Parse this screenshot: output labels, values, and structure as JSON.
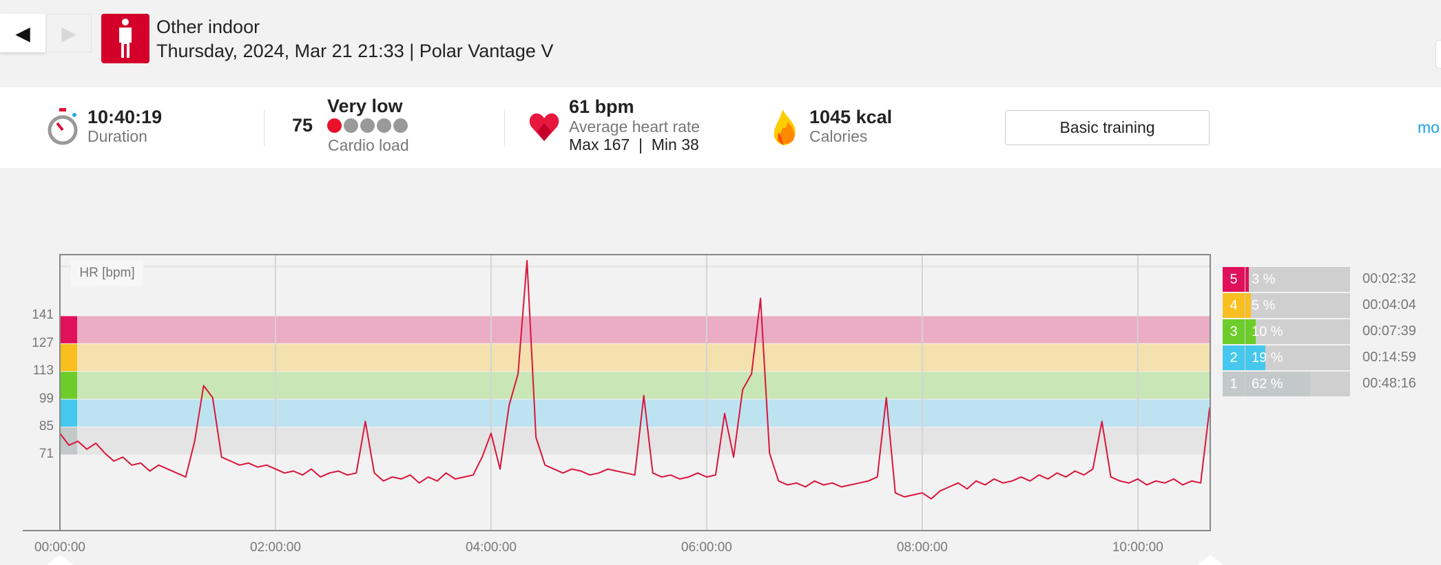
{
  "header": {
    "back_icon": "◀",
    "forward_icon": "▶",
    "sport_icon": "person-icon",
    "title": "Other indoor",
    "subtitle": "Thursday, 2024, Mar 21 21:33 | Polar Vantage V"
  },
  "stats": {
    "duration": {
      "value": "10:40:19",
      "label": "Duration"
    },
    "cardio": {
      "score": "75",
      "level": "Very low",
      "label": "Cardio load",
      "dots_filled": 1,
      "dots_total": 5
    },
    "heart": {
      "value": "61 bpm",
      "label": "Average heart rate",
      "maxmin": "Max 167  |  Min 38"
    },
    "calories": {
      "value": "1045 kcal",
      "label": "Calories"
    },
    "button": "Basic training",
    "more": "mo"
  },
  "colors": {
    "accent": "#d4002a",
    "line": "#d9143a",
    "link": "#1aa0e0"
  },
  "chart_data": {
    "type": "line",
    "ylabel": "HR [bpm]",
    "ylim": [
      33,
      172
    ],
    "xlim_hours": [
      0,
      10.672
    ],
    "yticks": [
      "141",
      "127",
      "113",
      "99",
      "85",
      "71"
    ],
    "ytick_values": [
      141,
      127,
      113,
      99,
      85,
      71
    ],
    "xticks": [
      "00:00:00",
      "02:00:00",
      "04:00:00",
      "06:00:00",
      "08:00:00",
      "10:00:00"
    ],
    "xtick_hours": [
      0,
      2,
      4,
      6,
      8,
      10
    ],
    "zones": [
      {
        "zone": "5",
        "from": 127,
        "to": 141,
        "color": "#e0105a",
        "band": "#ebadc4",
        "pct": "3 %",
        "pct_value": 3,
        "time": "00:02:32"
      },
      {
        "zone": "4",
        "from": 113,
        "to": 127,
        "color": "#f9bf20",
        "band": "#f5e1ae",
        "pct": "5 %",
        "pct_value": 5,
        "time": "00:04:04"
      },
      {
        "zone": "3",
        "from": 99,
        "to": 113,
        "color": "#6ccd2a",
        "band": "#c9e6b6",
        "pct": "10 %",
        "pct_value": 10,
        "time": "00:07:39"
      },
      {
        "zone": "2",
        "from": 85,
        "to": 99,
        "color": "#46c8ee",
        "band": "#bde3f1",
        "pct": "19 %",
        "pct_value": 19,
        "time": "00:14:59"
      },
      {
        "zone": "1",
        "from": 71,
        "to": 85,
        "color": "#c2c9c8",
        "band": "#e3e4e3",
        "pct": "62 %",
        "pct_value": 62,
        "time": "00:48:16"
      }
    ],
    "series": [
      {
        "name": "HR",
        "interval_min": 5,
        "values": [
          82,
          76,
          78,
          74,
          77,
          72,
          68,
          70,
          66,
          67,
          63,
          66,
          64,
          62,
          60,
          78,
          106,
          100,
          70,
          68,
          66,
          67,
          65,
          66,
          64,
          62,
          63,
          61,
          64,
          60,
          62,
          63,
          61,
          62,
          88,
          62,
          58,
          60,
          59,
          61,
          57,
          60,
          58,
          62,
          59,
          60,
          61,
          70,
          82,
          64,
          96,
          112,
          169,
          80,
          66,
          64,
          62,
          64,
          63,
          61,
          62,
          64,
          63,
          62,
          61,
          101,
          62,
          60,
          61,
          59,
          60,
          62,
          60,
          61,
          92,
          70,
          104,
          112,
          150,
          72,
          58,
          56,
          57,
          55,
          58,
          56,
          57,
          55,
          56,
          57,
          58,
          60,
          100,
          52,
          50,
          51,
          52,
          49,
          53,
          55,
          57,
          54,
          58,
          56,
          59,
          57,
          58,
          60,
          58,
          61,
          59,
          62,
          60,
          63,
          61,
          64,
          88,
          60,
          58,
          57,
          59,
          56,
          58,
          57,
          59,
          56,
          58,
          57,
          95
        ]
      }
    ]
  }
}
